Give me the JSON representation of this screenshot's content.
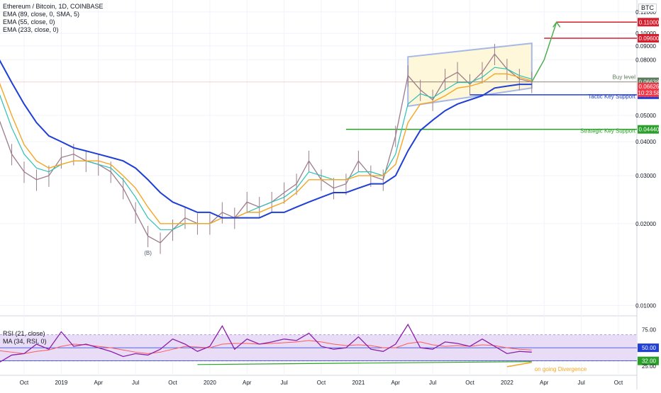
{
  "header": {
    "title": "Ethereum / Bitcoin, 1D, COINBASE",
    "indicators": [
      "EMA (89, close, 0, SMA, 5)",
      "EMA (55, close, 0)",
      "EMA (233, close, 0)"
    ],
    "currency": "BTC"
  },
  "rsi_legend": [
    "RSI (21, close)",
    "MA (34, RSI, 0)"
  ],
  "colors": {
    "ema89": "#f5a623",
    "ema55": "#2bc0b4",
    "ema233": "#1f3fd6",
    "candle_up": "#9c7c8c",
    "candle_down": "#9c7c8c",
    "rsi": "#8b1fa8",
    "rsi_ma": "#ff5a5a",
    "rsi_band": "#e9dcf7",
    "channel_fill": "#fff7d9",
    "channel_stroke": "#a5b8e8",
    "target_line": "#d61f2e",
    "buy_line": "#5c7a5c",
    "tactic_line": "#1f3fd6",
    "strategic_line": "#2aa02a",
    "projection": "#4caf50",
    "divergence": "#f5a623"
  },
  "chart_data": [
    {
      "type": "line",
      "title": "Ethereum / Bitcoin, 1D, COINBASE",
      "scale": "log",
      "ylim": [
        0.0095,
        0.128
      ],
      "y_ticks": [
        "0.01000",
        "0.02000",
        "0.03000",
        "0.04000",
        "0.05000",
        "0.08000",
        "0.09000",
        "0.10000",
        "0.12000"
      ],
      "y_tick_values": [
        0.01,
        0.02,
        0.03,
        0.04,
        0.05,
        0.08,
        0.09,
        0.1,
        0.12
      ],
      "x_labels": [
        "Oct",
        "2019",
        "Apr",
        "Jul",
        "Oct",
        "2020",
        "Apr",
        "Jul",
        "Oct",
        "2021",
        "Apr",
        "Jul",
        "Oct",
        "2022",
        "Apr",
        "Jul",
        "Oct"
      ],
      "x_label_dates": [
        "2018-10",
        "2019-01",
        "2019-04",
        "2019-07",
        "2019-10",
        "2020-01",
        "2020-04",
        "2020-07",
        "2020-10",
        "2021-01",
        "2021-04",
        "2021-07",
        "2021-10",
        "2022-01",
        "2022-04",
        "2022-07",
        "2022-10"
      ],
      "x_range": [
        "2018-07",
        "2022-12"
      ],
      "price_series": {
        "x": [
          "2018-07",
          "2018-08",
          "2018-09",
          "2018-10",
          "2018-11",
          "2018-12",
          "2019-01",
          "2019-02",
          "2019-03",
          "2019-04",
          "2019-05",
          "2019-06",
          "2019-07",
          "2019-08",
          "2019-09",
          "2019-10",
          "2019-11",
          "2019-12",
          "2020-01",
          "2020-02",
          "2020-03",
          "2020-04",
          "2020-05",
          "2020-06",
          "2020-07",
          "2020-08",
          "2020-09",
          "2020-10",
          "2020-11",
          "2020-12",
          "2021-01",
          "2021-02",
          "2021-03",
          "2021-04",
          "2021-05",
          "2021-06",
          "2021-07",
          "2021-08",
          "2021-09",
          "2021-10",
          "2021-11",
          "2021-12",
          "2022-01",
          "2022-02",
          "2022-03"
        ],
        "close": [
          0.068,
          0.048,
          0.036,
          0.031,
          0.029,
          0.03,
          0.035,
          0.036,
          0.034,
          0.033,
          0.031,
          0.027,
          0.022,
          0.018,
          0.017,
          0.019,
          0.021,
          0.02,
          0.02,
          0.022,
          0.021,
          0.024,
          0.023,
          0.024,
          0.026,
          0.028,
          0.034,
          0.029,
          0.027,
          0.028,
          0.034,
          0.03,
          0.029,
          0.042,
          0.07,
          0.062,
          0.057,
          0.068,
          0.072,
          0.065,
          0.072,
          0.084,
          0.074,
          0.068,
          0.0663
        ]
      },
      "series": [
        {
          "name": "EMA (55, close, 0)",
          "values": [
            0.08,
            0.06,
            0.045,
            0.036,
            0.032,
            0.031,
            0.033,
            0.034,
            0.034,
            0.033,
            0.032,
            0.029,
            0.025,
            0.021,
            0.019,
            0.019,
            0.02,
            0.02,
            0.02,
            0.021,
            0.021,
            0.022,
            0.023,
            0.024,
            0.025,
            0.027,
            0.031,
            0.03,
            0.029,
            0.029,
            0.031,
            0.031,
            0.03,
            0.036,
            0.055,
            0.06,
            0.058,
            0.062,
            0.066,
            0.066,
            0.069,
            0.075,
            0.074,
            0.07,
            0.068
          ]
        },
        {
          "name": "EMA (89, close, 0, SMA, 5)",
          "values": [
            0.083,
            0.066,
            0.05,
            0.039,
            0.034,
            0.032,
            0.033,
            0.034,
            0.034,
            0.034,
            0.033,
            0.03,
            0.027,
            0.023,
            0.02,
            0.02,
            0.02,
            0.02,
            0.02,
            0.021,
            0.021,
            0.022,
            0.022,
            0.023,
            0.024,
            0.026,
            0.029,
            0.029,
            0.029,
            0.029,
            0.03,
            0.03,
            0.03,
            0.033,
            0.047,
            0.055,
            0.056,
            0.059,
            0.063,
            0.064,
            0.066,
            0.071,
            0.071,
            0.069,
            0.067
          ]
        },
        {
          "name": "EMA (233, close, 0)",
          "values": [
            0.09,
            0.08,
            0.066,
            0.055,
            0.047,
            0.042,
            0.04,
            0.038,
            0.037,
            0.036,
            0.035,
            0.034,
            0.032,
            0.029,
            0.026,
            0.024,
            0.023,
            0.022,
            0.022,
            0.021,
            0.021,
            0.021,
            0.021,
            0.022,
            0.022,
            0.023,
            0.024,
            0.025,
            0.026,
            0.026,
            0.027,
            0.028,
            0.028,
            0.03,
            0.037,
            0.044,
            0.048,
            0.052,
            0.055,
            0.057,
            0.059,
            0.063,
            0.064,
            0.065,
            0.065
          ]
        }
      ],
      "annotations": [
        {
          "label": "Buy level",
          "value": 0.06638,
          "tag": "0.06638"
        },
        {
          "label": "Tactic Key Support",
          "value": 0.0595,
          "tag": "0.05950"
        },
        {
          "label": "Strategic Key Support",
          "value": 0.0444,
          "tag": "0.04440"
        },
        {
          "label": "",
          "value": 0.11,
          "tag": "0.11000"
        },
        {
          "label": "",
          "value": 0.096,
          "tag": "0.09600"
        },
        {
          "label": "(B)",
          "value": 0.0175
        }
      ],
      "last_price": {
        "value": 0.06626,
        "tag": "0.06626",
        "countdown": "10:23:58"
      },
      "channel": {
        "top": [
          [
            "2021-05",
            0.082
          ],
          [
            "2022-03",
            0.092
          ]
        ],
        "bottom": [
          [
            "2021-05",
            0.054
          ],
          [
            "2022-03",
            0.063
          ]
        ]
      },
      "projection": [
        [
          "2022-03",
          0.0663
        ],
        [
          "2022-04",
          0.08
        ],
        [
          "2022-05",
          0.11
        ]
      ],
      "grid": true
    },
    {
      "type": "line",
      "title": "RSI (21, close)",
      "ylim": [
        20,
        90
      ],
      "y_ticks": [
        "75.00",
        "25.00"
      ],
      "y_tick_values": [
        75,
        25
      ],
      "band": [
        32,
        68
      ],
      "levels": [
        {
          "value": 50,
          "tag": "50.00"
        },
        {
          "value": 32,
          "tag": "32.00"
        }
      ],
      "series": [
        {
          "name": "RSI (21, close)",
          "x": [
            "2018-07",
            "2018-08",
            "2018-09",
            "2018-10",
            "2018-11",
            "2018-12",
            "2019-01",
            "2019-02",
            "2019-03",
            "2019-04",
            "2019-05",
            "2019-06",
            "2019-07",
            "2019-08",
            "2019-09",
            "2019-10",
            "2019-11",
            "2019-12",
            "2020-01",
            "2020-02",
            "2020-03",
            "2020-04",
            "2020-05",
            "2020-06",
            "2020-07",
            "2020-08",
            "2020-09",
            "2020-10",
            "2020-11",
            "2020-12",
            "2021-01",
            "2021-02",
            "2021-03",
            "2021-04",
            "2021-05",
            "2021-06",
            "2021-07",
            "2021-08",
            "2021-09",
            "2021-10",
            "2021-11",
            "2021-12",
            "2022-01",
            "2022-02",
            "2022-03"
          ],
          "values": [
            45,
            30,
            40,
            42,
            55,
            48,
            72,
            52,
            55,
            50,
            45,
            38,
            42,
            40,
            48,
            62,
            55,
            45,
            52,
            80,
            48,
            62,
            55,
            58,
            62,
            60,
            70,
            52,
            48,
            50,
            65,
            48,
            45,
            55,
            82,
            50,
            48,
            58,
            56,
            52,
            62,
            52,
            42,
            45,
            44
          ]
        },
        {
          "name": "MA (34, RSI, 0)",
          "values": [
            50,
            46,
            44,
            42,
            45,
            47,
            52,
            55,
            54,
            52,
            50,
            47,
            44,
            42,
            44,
            48,
            52,
            51,
            50,
            55,
            56,
            56,
            55,
            56,
            57,
            58,
            60,
            58,
            55,
            53,
            54,
            53,
            50,
            50,
            56,
            58,
            54,
            52,
            53,
            52,
            54,
            53,
            50,
            48,
            47
          ]
        }
      ],
      "annotations": [
        {
          "label": "on going Divergence"
        }
      ]
    }
  ]
}
